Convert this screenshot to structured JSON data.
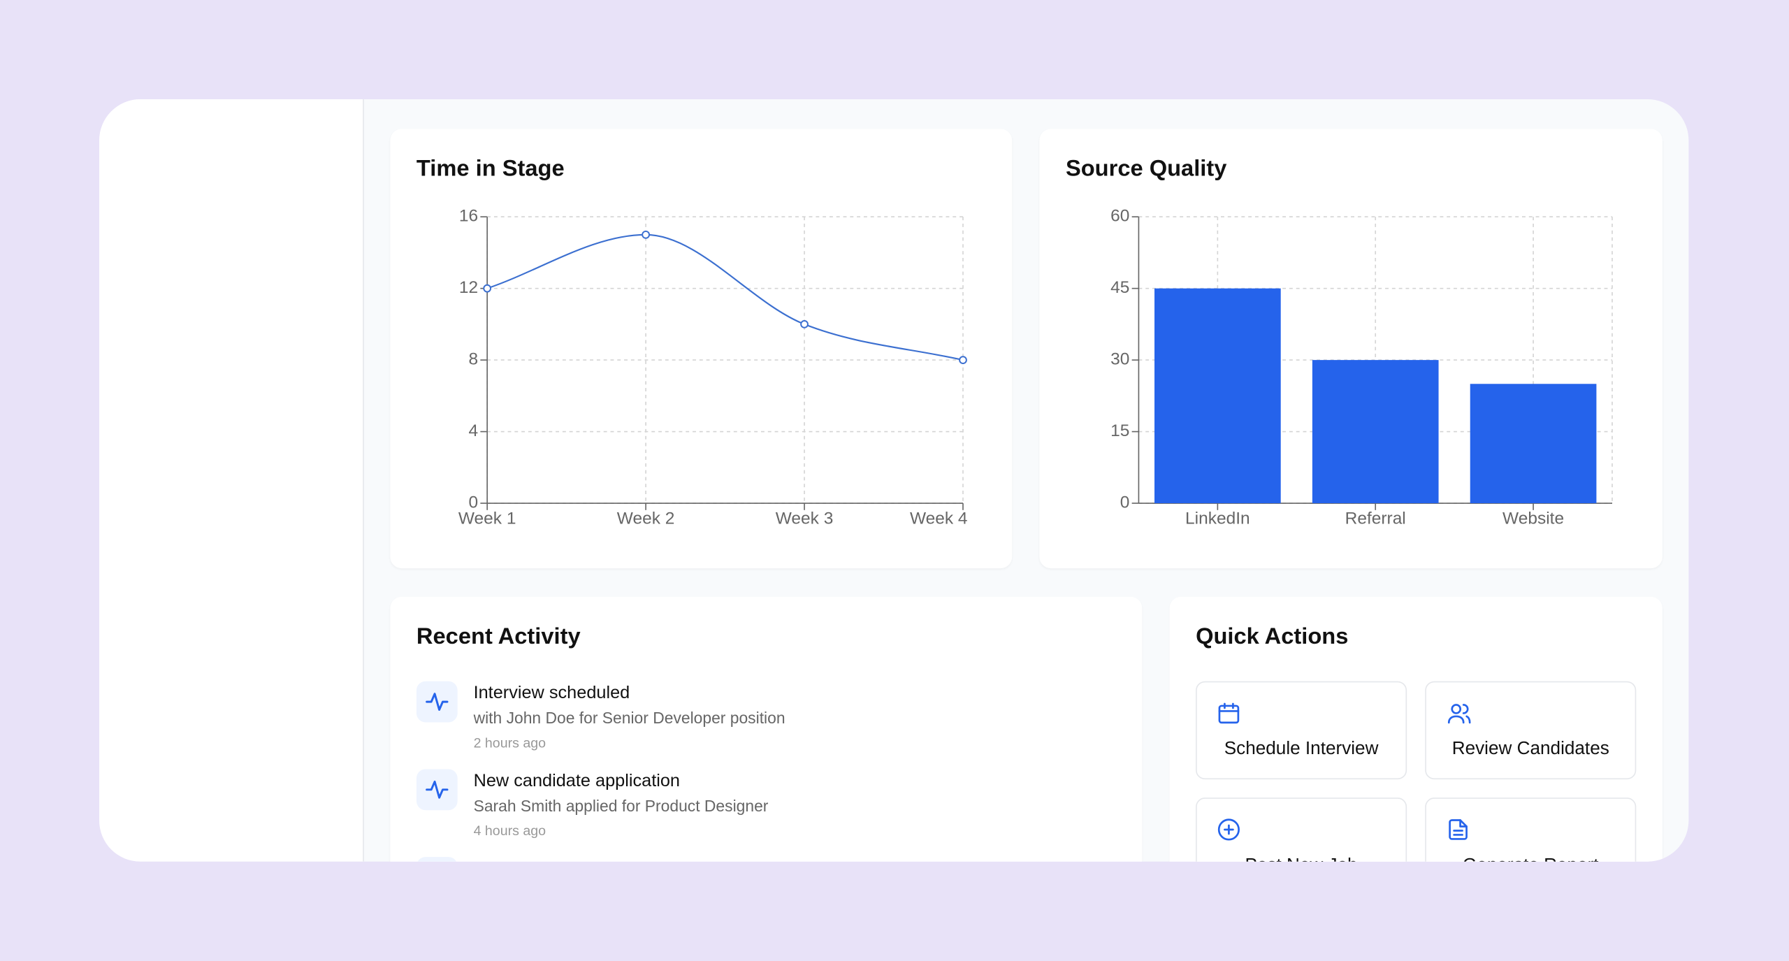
{
  "chart_data": [
    {
      "type": "line",
      "title": "Time in Stage",
      "categories": [
        "Week 1",
        "Week 2",
        "Week 3",
        "Week 4"
      ],
      "values": [
        12,
        15,
        10,
        8
      ],
      "color": "#3b6fd0",
      "ylim": [
        0,
        16
      ],
      "yticks": [
        0,
        4,
        8,
        12,
        16
      ],
      "grid": true
    },
    {
      "type": "bar",
      "title": "Source Quality",
      "categories": [
        "LinkedIn",
        "Referral",
        "Website"
      ],
      "values": [
        45,
        30,
        25
      ],
      "color": "#2563eb",
      "ylim": [
        0,
        60
      ],
      "yticks": [
        0,
        15,
        30,
        45,
        60
      ],
      "grid": true
    }
  ],
  "activity": {
    "title": "Recent Activity",
    "items": [
      {
        "title": "Interview scheduled",
        "detail": "with John Doe for Senior Developer position",
        "time": "2 hours ago"
      },
      {
        "title": "New candidate application",
        "detail": "Sarah Smith applied for Product Designer",
        "time": "4 hours ago"
      }
    ]
  },
  "quick_actions": {
    "title": "Quick Actions",
    "buttons": [
      "Schedule Interview",
      "Review Candidates",
      "Post New Job",
      "Generate Report"
    ]
  }
}
